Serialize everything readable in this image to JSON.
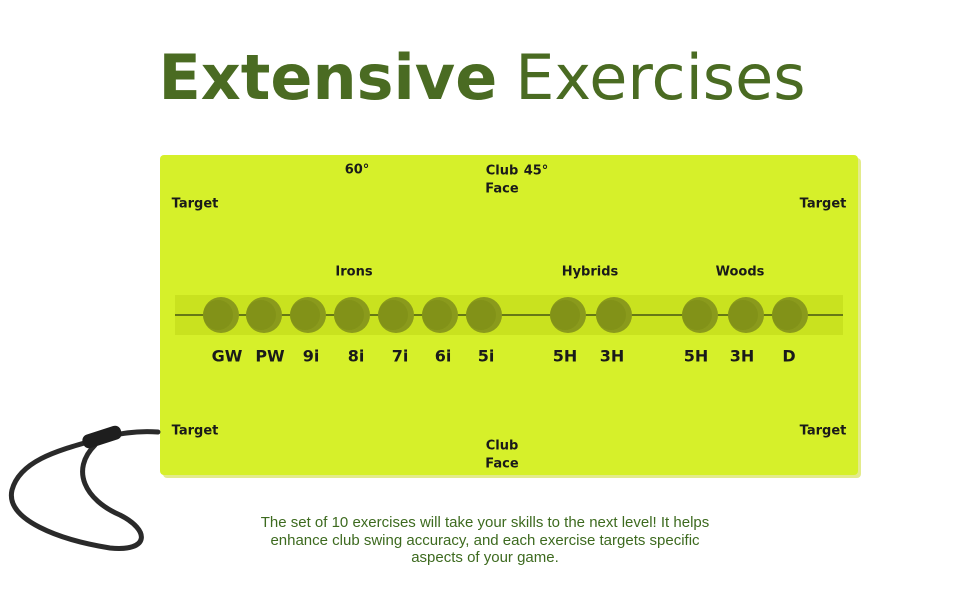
{
  "header": {
    "title_bold": "Extensive",
    "title_light": "Exercises"
  },
  "board": {
    "top_angle_left": "60°",
    "top_angle_right": "45°",
    "top_club_face": [
      "Club",
      "Face"
    ],
    "bottom_club_face": [
      "Club",
      "Face"
    ],
    "targets": [
      "Target",
      "Target",
      "Target",
      "Target"
    ],
    "groups": [
      "Irons",
      "Hybrids",
      "Woods"
    ],
    "clubs": [
      "GW",
      "PW",
      "9i",
      "8i",
      "7i",
      "6i",
      "5i",
      "5H",
      "3H",
      "5H",
      "3H",
      "D"
    ]
  },
  "description": [
    "The set of 10 exercises will take your skills to the next level! It helps",
    "enhance club swing accuracy, and each exercise targets specific",
    "aspects of your game."
  ]
}
